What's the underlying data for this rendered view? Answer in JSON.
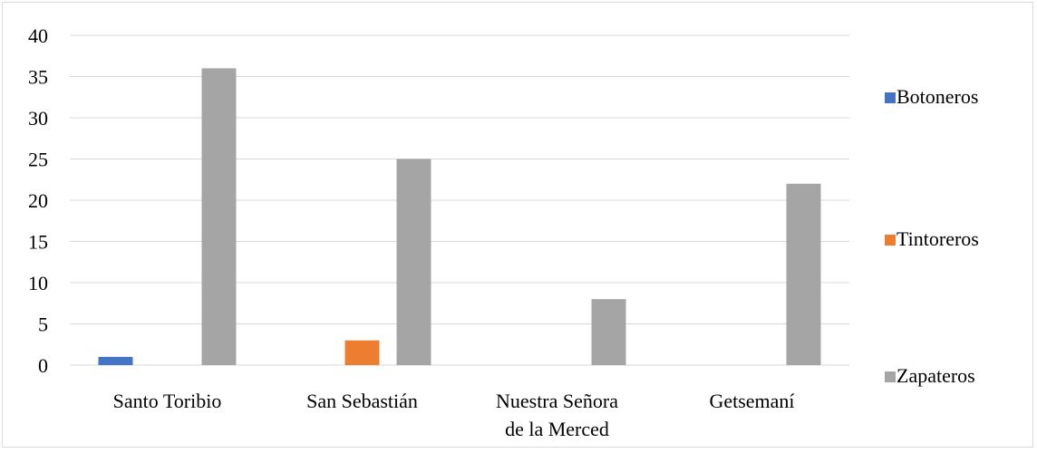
{
  "chart_data": {
    "type": "bar",
    "categories": [
      [
        "Santo Toribio"
      ],
      [
        "San Sebastián"
      ],
      [
        "Nuestra Señora",
        "de la Merced"
      ],
      [
        "Getsemaní"
      ]
    ],
    "series": [
      {
        "name": "Botoneros",
        "values": [
          1,
          0,
          0,
          0
        ],
        "color": "#4472c4"
      },
      {
        "name": "Tintoreros",
        "values": [
          0,
          3,
          0,
          0
        ],
        "color": "#ed7d31"
      },
      {
        "name": "Zapateros",
        "values": [
          36,
          25,
          8,
          22
        ],
        "color": "#a5a5a5"
      }
    ],
    "ylim": [
      0,
      40
    ],
    "yticks": [
      0,
      5,
      10,
      15,
      20,
      25,
      30,
      35,
      40
    ],
    "grid": true,
    "legend_position": "right"
  }
}
